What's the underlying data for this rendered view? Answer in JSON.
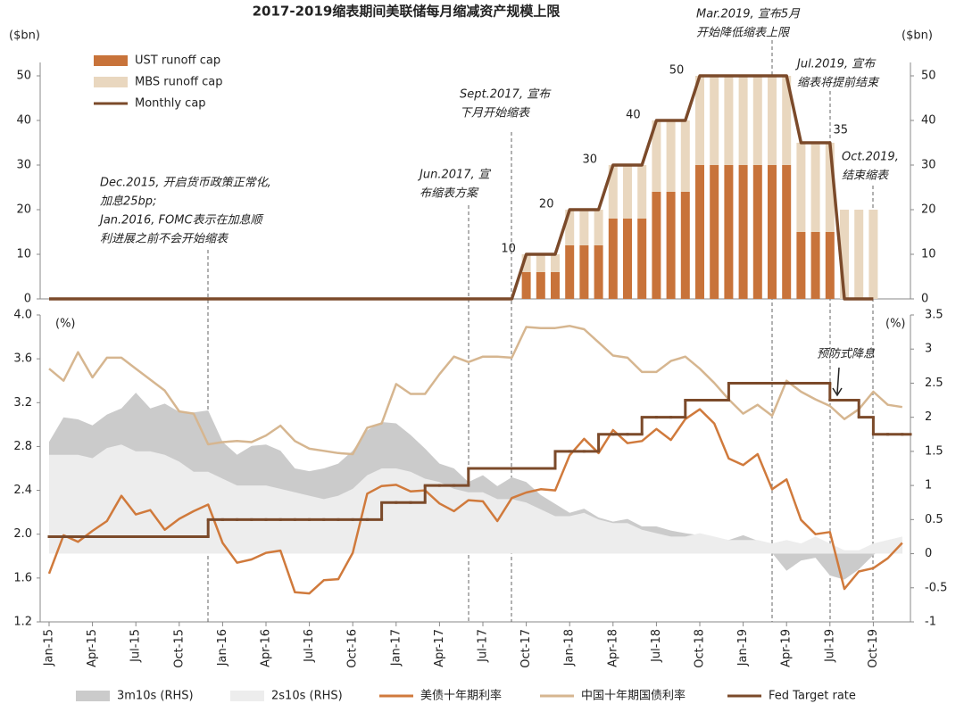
{
  "chart_data": [
    {
      "type": "bar",
      "title": "2017-2019缩表期间美联储每月缩减资产规模上限",
      "y_label": "($bn)",
      "y2_label": "($bn)",
      "ylim": [
        0,
        50
      ],
      "yticks": [
        0,
        10,
        20,
        30,
        40,
        50
      ],
      "y2lim": [
        0,
        50
      ],
      "y2ticks": [
        0,
        10,
        20,
        30,
        40,
        50
      ],
      "stacked": true,
      "legend": "top-left",
      "series": [
        {
          "name": "UST runoff cap",
          "color": "#c8733a",
          "values": [
            null,
            null,
            null,
            null,
            null,
            null,
            null,
            null,
            null,
            null,
            null,
            null,
            null,
            null,
            null,
            null,
            null,
            null,
            null,
            null,
            null,
            null,
            null,
            null,
            null,
            null,
            null,
            null,
            null,
            null,
            null,
            null,
            null,
            6,
            6,
            6,
            12,
            12,
            12,
            18,
            18,
            18,
            24,
            24,
            24,
            30,
            30,
            30,
            30,
            30,
            30,
            30,
            15,
            15,
            15,
            null,
            null,
            null,
            null,
            null
          ]
        },
        {
          "name": "MBS runoff cap",
          "color": "#e9d7bf",
          "values": [
            null,
            null,
            null,
            null,
            null,
            null,
            null,
            null,
            null,
            null,
            null,
            null,
            null,
            null,
            null,
            null,
            null,
            null,
            null,
            null,
            null,
            null,
            null,
            null,
            null,
            null,
            null,
            null,
            null,
            null,
            null,
            null,
            null,
            4,
            4,
            4,
            8,
            8,
            8,
            12,
            12,
            12,
            16,
            16,
            16,
            20,
            20,
            20,
            20,
            20,
            20,
            20,
            20,
            20,
            20,
            20,
            20,
            20,
            null,
            null
          ]
        },
        {
          "name": "Monthly cap",
          "type": "line",
          "color": "#7b4a2a",
          "values": [
            0,
            0,
            0,
            0,
            0,
            0,
            0,
            0,
            0,
            0,
            0,
            0,
            0,
            0,
            0,
            0,
            0,
            0,
            0,
            0,
            0,
            0,
            0,
            0,
            0,
            0,
            0,
            0,
            0,
            0,
            0,
            0,
            0,
            10,
            10,
            10,
            20,
            20,
            20,
            30,
            30,
            30,
            40,
            40,
            40,
            50,
            50,
            50,
            50,
            50,
            50,
            50,
            35,
            35,
            35,
            0,
            0,
            0,
            null,
            null
          ]
        }
      ],
      "annotations": [
        {
          "lines": [
            "Dec.2015, 开启货币政策正常化,",
            "加息25bp;",
            "Jan.2016, FOMC表示在加息顺",
            "利进展之前不会开始缩表"
          ]
        },
        {
          "lines": [
            "Jun.2017, 宣",
            "布缩表方案"
          ]
        },
        {
          "lines": [
            "Sept.2017, 宣布",
            "下月开始缩表"
          ]
        },
        {
          "lines": [
            "Mar.2019, 宣布5月",
            "开始降低缩表上限"
          ]
        },
        {
          "lines": [
            "Jul.2019, 宣布",
            "缩表将提前结束"
          ]
        },
        {
          "lines": [
            "Oct.2019,",
            "结束缩表"
          ]
        }
      ]
    },
    {
      "type": "line",
      "y_label": "(%)",
      "y2_label": "(%)",
      "ylim": [
        1.2,
        4.0
      ],
      "yticks": [
        1.2,
        1.6,
        {
          "value": 2.0,
          "label": "2.0"
        },
        2.4,
        2.8,
        3.2,
        3.6,
        {
          "value": 4.0,
          "label": "4.0"
        }
      ],
      "y2lim": [
        -1,
        3.5
      ],
      "y2ticks": [
        -1,
        -0.5,
        0,
        0.5,
        1,
        1.5,
        2,
        2.5,
        3,
        3.5
      ],
      "legend": "bottom",
      "categories": [
        "Jan-15",
        null,
        null,
        "Apr-15",
        null,
        null,
        "Jul-15",
        null,
        null,
        "Oct-15",
        null,
        null,
        "Jan-16",
        null,
        null,
        "Apr-16",
        null,
        null,
        "Jul-16",
        null,
        null,
        "Oct-16",
        null,
        null,
        "Jan-17",
        null,
        null,
        "Apr-17",
        null,
        null,
        "Jul-17",
        null,
        null,
        "Oct-17",
        null,
        null,
        "Jan-18",
        null,
        null,
        "Apr-18",
        null,
        null,
        "Jul-18",
        null,
        null,
        "Oct-18",
        null,
        null,
        "Jan-19",
        null,
        null,
        "Apr-19",
        null,
        null,
        "Jul-19",
        null,
        null,
        "Oct-19",
        null,
        null
      ],
      "series": [
        {
          "name": "3m10s (RHS)",
          "type": "area",
          "axis": "y2",
          "color": "#cbcbcb",
          "values": [
            1.64,
            2.0,
            1.97,
            1.88,
            2.04,
            2.13,
            2.36,
            2.13,
            2.2,
            2.08,
            2.07,
            2.1,
            1.64,
            1.45,
            1.58,
            1.6,
            1.51,
            1.25,
            1.21,
            1.25,
            1.32,
            1.51,
            1.81,
            1.93,
            1.91,
            1.74,
            1.54,
            1.32,
            1.25,
            1.05,
            1.15,
            0.99,
            1.12,
            1.05,
            0.86,
            0.73,
            0.6,
            0.66,
            0.53,
            0.47,
            0.51,
            0.4,
            0.4,
            0.34,
            0.3,
            0.27,
            0.23,
            0.2,
            0.27,
            0.19,
            0.01,
            -0.25,
            -0.1,
            -0.06,
            -0.32,
            -0.38,
            -0.23,
            -0.02,
            0.14,
            0.2
          ]
        },
        {
          "name": "2s10s (RHS)",
          "type": "area",
          "axis": "y2",
          "color": "#ededed",
          "values": [
            1.45,
            1.45,
            1.45,
            1.4,
            1.55,
            1.6,
            1.5,
            1.5,
            1.45,
            1.35,
            1.2,
            1.2,
            1.1,
            1.0,
            1.0,
            1.0,
            0.95,
            0.9,
            0.85,
            0.8,
            0.85,
            0.95,
            1.15,
            1.25,
            1.25,
            1.2,
            1.1,
            1.05,
            0.95,
            0.9,
            0.9,
            0.8,
            0.8,
            0.75,
            0.65,
            0.55,
            0.55,
            0.6,
            0.5,
            0.45,
            0.45,
            0.35,
            0.3,
            0.25,
            0.25,
            0.3,
            0.25,
            0.2,
            0.2,
            0.2,
            0.15,
            0.2,
            0.15,
            0.25,
            0.15,
            0.05,
            0.05,
            0.15,
            0.2,
            0.25
          ]
        },
        {
          "name": "美债十年期利率",
          "type": "line",
          "color": "#d07a3c",
          "values": [
            1.64,
            1.99,
            1.93,
            2.03,
            2.12,
            2.35,
            2.18,
            2.22,
            2.04,
            2.14,
            2.21,
            2.27,
            1.92,
            1.74,
            1.77,
            1.83,
            1.85,
            1.47,
            1.46,
            1.58,
            1.59,
            1.83,
            2.37,
            2.44,
            2.45,
            2.39,
            2.4,
            2.28,
            2.21,
            2.31,
            2.3,
            2.12,
            2.33,
            2.38,
            2.41,
            2.4,
            2.72,
            2.87,
            2.74,
            2.95,
            2.83,
            2.85,
            2.96,
            2.86,
            3.05,
            3.14,
            3.01,
            2.69,
            2.63,
            2.73,
            2.41,
            2.5,
            2.13,
            2.0,
            2.02,
            1.5,
            1.66,
            1.69,
            1.78,
            1.92
          ]
        },
        {
          "name": "中国十年期国债利率",
          "type": "line",
          "color": "#d6b690",
          "values": [
            3.51,
            3.4,
            3.66,
            3.43,
            3.61,
            3.61,
            3.51,
            3.41,
            3.31,
            3.12,
            3.1,
            2.82,
            2.84,
            2.85,
            2.84,
            2.9,
            2.99,
            2.85,
            2.78,
            2.76,
            2.74,
            2.73,
            2.97,
            3.01,
            3.37,
            3.28,
            3.28,
            3.46,
            3.62,
            3.57,
            3.62,
            3.62,
            3.61,
            3.89,
            3.88,
            3.88,
            3.9,
            3.87,
            3.75,
            3.63,
            3.61,
            3.48,
            3.48,
            3.58,
            3.62,
            3.51,
            3.38,
            3.23,
            3.1,
            3.18,
            3.08,
            3.4,
            3.3,
            3.23,
            3.17,
            3.05,
            3.14,
            3.3,
            3.18,
            3.16
          ]
        },
        {
          "name": "Fed Target rate",
          "type": "step",
          "axis": "y2",
          "color": "#7b4a2a",
          "values": [
            0.25,
            0.25,
            0.25,
            0.25,
            0.25,
            0.25,
            0.25,
            0.25,
            0.25,
            0.25,
            0.25,
            0.5,
            0.5,
            0.5,
            0.5,
            0.5,
            0.5,
            0.5,
            0.5,
            0.5,
            0.5,
            0.5,
            0.5,
            0.75,
            0.75,
            0.75,
            1.0,
            1.0,
            1.0,
            1.25,
            1.25,
            1.25,
            1.25,
            1.25,
            1.25,
            1.5,
            1.5,
            1.5,
            1.75,
            1.75,
            1.75,
            2.0,
            2.0,
            2.0,
            2.25,
            2.25,
            2.25,
            2.5,
            2.5,
            2.5,
            2.5,
            2.5,
            2.5,
            2.5,
            2.25,
            2.25,
            2.0,
            1.75,
            1.75,
            1.75
          ]
        }
      ],
      "annotations": [
        {
          "text": "预防式降息"
        }
      ]
    }
  ]
}
